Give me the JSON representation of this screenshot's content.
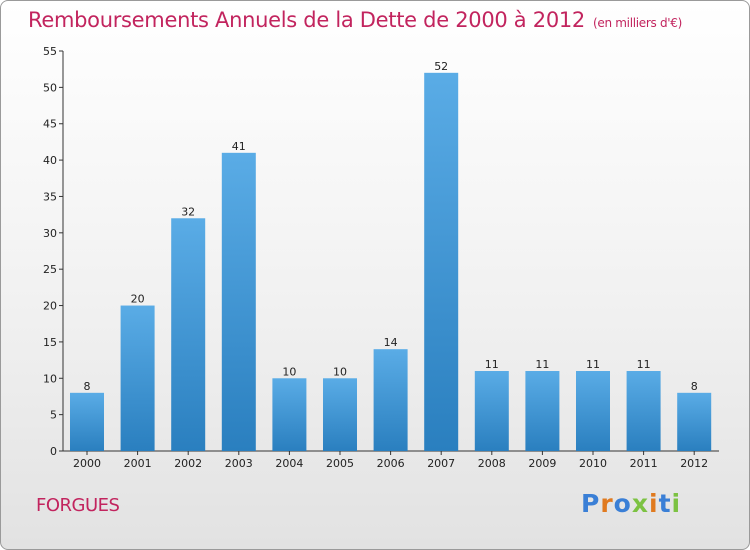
{
  "title": "Remboursements Annuels de la Dette de 2000 à 2012",
  "title_unit": "(en milliers d'€)",
  "commune": "FORGUES",
  "logo": {
    "text": "Proxiti",
    "letters": [
      {
        "ch": "P",
        "color": "#3a7fd6"
      },
      {
        "ch": "r",
        "color": "#e07a1f"
      },
      {
        "ch": "o",
        "color": "#3a7fd6"
      },
      {
        "ch": "x",
        "color": "#7cc242"
      },
      {
        "ch": "i",
        "color": "#e07a1f"
      },
      {
        "ch": "t",
        "color": "#3a7fd6"
      },
      {
        "ch": "i",
        "color": "#7cc242"
      }
    ]
  },
  "colors": {
    "bar_light": "#5aace6",
    "bar_dark": "#2a7fbf",
    "title": "#c2245e"
  },
  "chart_data": {
    "type": "bar",
    "title": "Remboursements Annuels de la Dette de 2000 à 2012",
    "categories": [
      "2000",
      "2001",
      "2002",
      "2003",
      "2004",
      "2005",
      "2006",
      "2007",
      "2008",
      "2009",
      "2010",
      "2011",
      "2012"
    ],
    "values": [
      8,
      20,
      32,
      41,
      10,
      10,
      14,
      52,
      11,
      11,
      11,
      11,
      8
    ],
    "ylim": [
      0,
      55
    ],
    "yticks": [
      0,
      5,
      10,
      15,
      20,
      25,
      30,
      35,
      40,
      45,
      50,
      55
    ],
    "grid": false
  }
}
